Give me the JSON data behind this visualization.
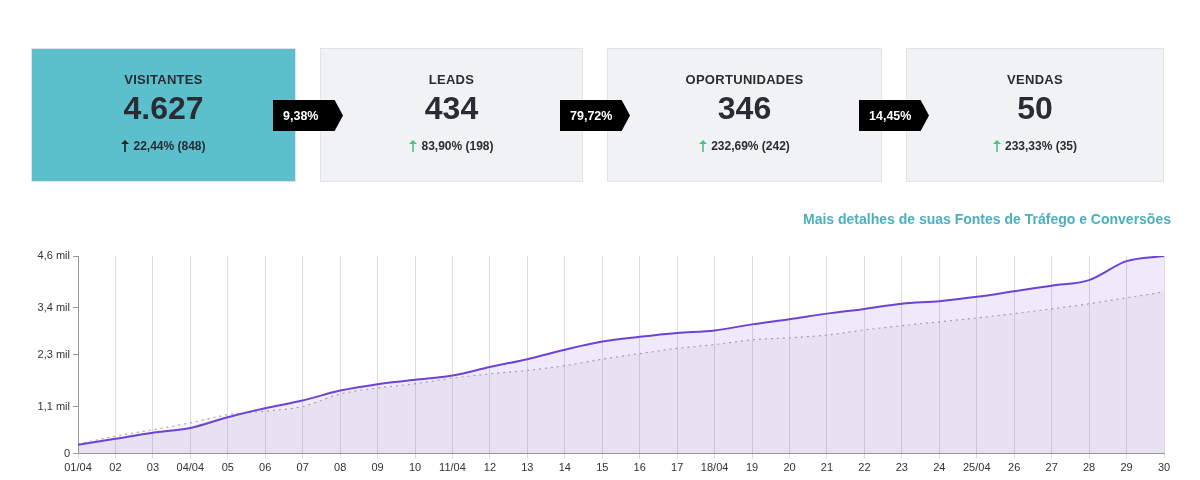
{
  "chart_data": [
    {
      "type": "other",
      "categories": [
        "VISITANTES",
        "LEADS",
        "OPORTUNIDADES",
        "VENDAS"
      ],
      "value_labels": [
        "4.627",
        "434",
        "346",
        "50"
      ],
      "colors": [
        "#5bbfcc",
        "#f1f2f4",
        "#f1f2f4",
        "#f1f2f4"
      ],
      "annotations": [
        {
          "text": "22,44% (848)",
          "x": "VISITANTES"
        },
        {
          "text": "83,90% (198)",
          "x": "LEADS"
        },
        {
          "text": "232,69% (242)",
          "x": "OPORTUNIDADES"
        },
        {
          "text": "233,33% (35)",
          "x": "VENDAS"
        },
        "9,38%",
        "79,72%",
        "14,45%"
      ]
    },
    {
      "type": "area",
      "categories": [
        "01/04",
        "02",
        "03",
        "04/04",
        "05",
        "06",
        "07",
        "08",
        "09",
        "10",
        "11/04",
        "12",
        "13",
        "14",
        "15",
        "16",
        "17",
        "18/04",
        "19",
        "20",
        "21",
        "22",
        "23",
        "24",
        "25/04",
        "26",
        "27",
        "28",
        "29",
        "30"
      ],
      "series": [
        {
          "color": "#6f42d6",
          "line_style": "solid",
          "values": [
            0.21,
            0.35,
            0.49,
            0.6,
            0.85,
            1.06,
            1.24,
            1.47,
            1.62,
            1.72,
            1.82,
            2.02,
            2.2,
            2.42,
            2.61,
            2.72,
            2.81,
            2.87,
            3.01,
            3.13,
            3.26,
            3.37,
            3.49,
            3.55,
            3.65,
            3.78,
            3.91,
            4.04,
            4.48,
            4.6
          ]
        },
        {
          "color": "#aaaaaa",
          "line_style": "dotted",
          "values": [
            0.23,
            0.41,
            0.56,
            0.72,
            0.91,
            0.99,
            1.1,
            1.39,
            1.53,
            1.63,
            1.76,
            1.86,
            1.94,
            2.05,
            2.2,
            2.33,
            2.45,
            2.54,
            2.65,
            2.7,
            2.76,
            2.88,
            2.98,
            3.07,
            3.16,
            3.26,
            3.37,
            3.49,
            3.63,
            3.76
          ]
        }
      ],
      "ylim": [
        0,
        4.6
      ],
      "yticks": [
        0,
        {
          "value": 1.1,
          "label": "1,1 mil"
        },
        {
          "value": 2.3,
          "label": "2,3 mil"
        },
        {
          "value": 3.4,
          "label": "3,4 mil"
        },
        {
          "value": 4.6,
          "label": "4,6 mil"
        }
      ],
      "grid": "x",
      "annotations": [
        "Mais detalhes de suas Fontes de Tráfego e Conversões"
      ]
    }
  ]
}
